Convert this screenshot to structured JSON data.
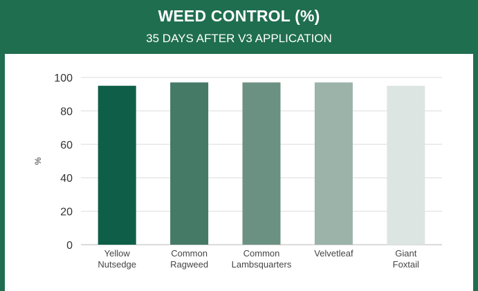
{
  "header": {
    "title": "WEED CONTROL (%)",
    "subtitle": "35 DAYS AFTER V3 APPLICATION"
  },
  "colors": {
    "header_bg": "#1f6e4f",
    "bars": [
      "#0f5f48",
      "#447a66",
      "#6b9182",
      "#9bb3a9",
      "#dde5e2"
    ],
    "grid": "#dcdcdc"
  },
  "chart_data": {
    "type": "bar",
    "title": "WEED CONTROL (%)",
    "subtitle": "35 DAYS AFTER V3 APPLICATION",
    "ylabel": "%",
    "xlabel": "",
    "ylim": [
      0,
      100
    ],
    "yticks": [
      0,
      20,
      40,
      60,
      80,
      100
    ],
    "grid": true,
    "categories": [
      [
        "Yellow",
        "Nutsedge"
      ],
      [
        "Common",
        "Ragweed"
      ],
      [
        "Common",
        "Lambsquarters"
      ],
      [
        "Velvetleaf"
      ],
      [
        "Giant",
        "Foxtail"
      ]
    ],
    "values": [
      95,
      97,
      97,
      97,
      95
    ]
  }
}
